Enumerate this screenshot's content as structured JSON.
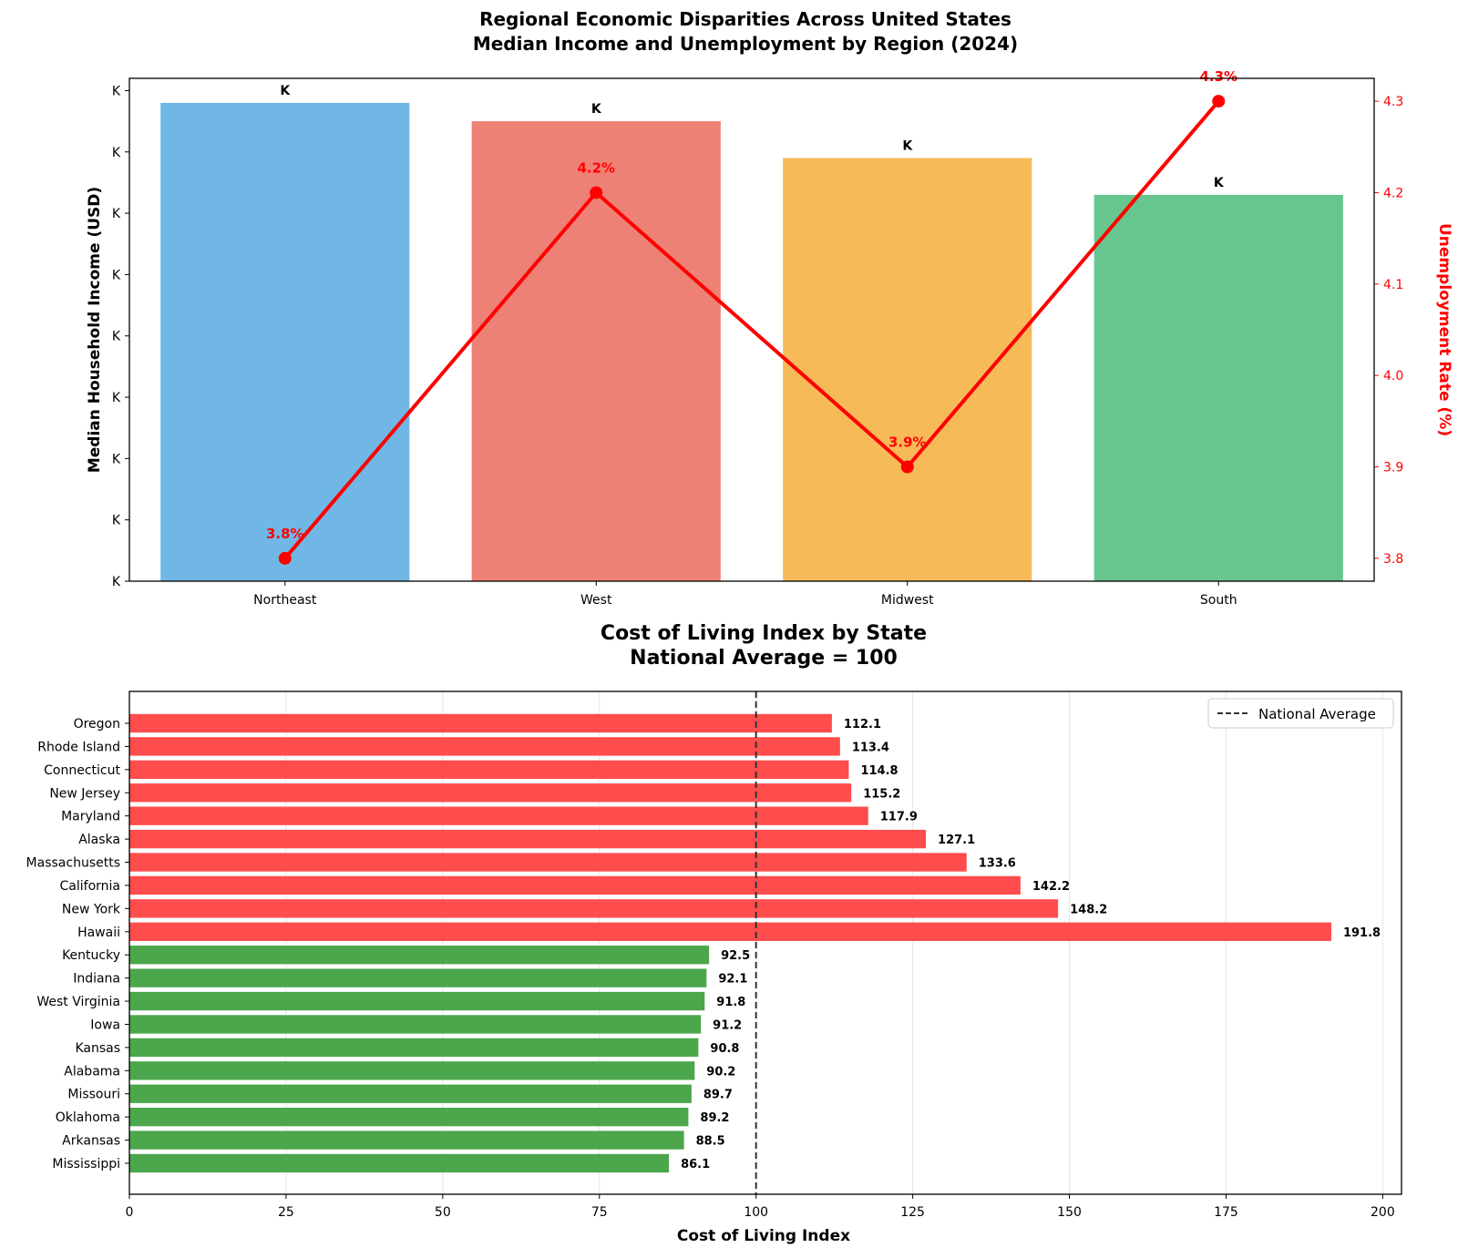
{
  "chart_data": [
    {
      "type": "bar",
      "title_line1": "Regional Economic Disparities Across United States",
      "title_line2": "Median Income and Unemployment by Region (2024)",
      "ylabel": "Median Household Income (USD)",
      "y2label": "Unemployment Rate (%)",
      "categories": [
        "Northeast",
        "West",
        "Midwest",
        "South"
      ],
      "bar_colors": [
        "#5DADE2",
        "#EC7063",
        "#F5B041",
        "#52BE80"
      ],
      "income_values": [
        78,
        75,
        69,
        63
      ],
      "income_ylim": [
        0,
        82
      ],
      "income_tick_label": "K",
      "income_tick_count": 9,
      "income_bar_labels": [
        "K",
        "K",
        "K",
        "K"
      ],
      "unemployment_values": [
        3.8,
        4.2,
        3.9,
        4.3
      ],
      "unemployment_labels": [
        "3.8%",
        "4.2%",
        "3.9%",
        "4.3%"
      ],
      "y2lim": [
        3.775,
        4.325
      ],
      "y2ticks": [
        "3.8",
        "3.9",
        "4.0",
        "4.1",
        "4.2",
        "4.3"
      ],
      "y2tick_values": [
        3.8,
        3.9,
        4.0,
        4.1,
        4.2,
        4.3
      ],
      "line_color": "#FF0000"
    },
    {
      "type": "bar",
      "orientation": "horizontal",
      "title_line1": "Cost of Living Index by State",
      "title_line2": "National Average = 100",
      "xlabel": "Cost of Living Index",
      "xlim": [
        0,
        203
      ],
      "xticks": [
        "0",
        "25",
        "50",
        "75",
        "100",
        "125",
        "150",
        "175",
        "200"
      ],
      "xtick_values": [
        0,
        25,
        50,
        75,
        100,
        125,
        150,
        175,
        200
      ],
      "grid": true,
      "reference_value": 100,
      "legend": {
        "label": "National Average",
        "position": "top-right"
      },
      "high_color": "#FF4C4C",
      "low_color": "#4CA64C",
      "states": [
        "Oregon",
        "Rhode Island",
        "Connecticut",
        "New Jersey",
        "Maryland",
        "Alaska",
        "Massachusetts",
        "California",
        "New York",
        "Hawaii",
        "Kentucky",
        "Indiana",
        "West Virginia",
        "Iowa",
        "Kansas",
        "Alabama",
        "Missouri",
        "Oklahoma",
        "Arkansas",
        "Mississippi"
      ],
      "values": [
        112.1,
        113.4,
        114.8,
        115.2,
        117.9,
        127.1,
        133.6,
        142.2,
        148.2,
        191.8,
        92.5,
        92.1,
        91.8,
        91.2,
        90.8,
        90.2,
        89.7,
        89.2,
        88.5,
        86.1
      ],
      "value_labels": [
        "112.1",
        "113.4",
        "114.8",
        "115.2",
        "117.9",
        "127.1",
        "133.6",
        "142.2",
        "148.2",
        "191.8",
        "92.5",
        "92.1",
        "91.8",
        "91.2",
        "90.8",
        "90.2",
        "89.7",
        "89.2",
        "88.5",
        "86.1"
      ]
    }
  ]
}
